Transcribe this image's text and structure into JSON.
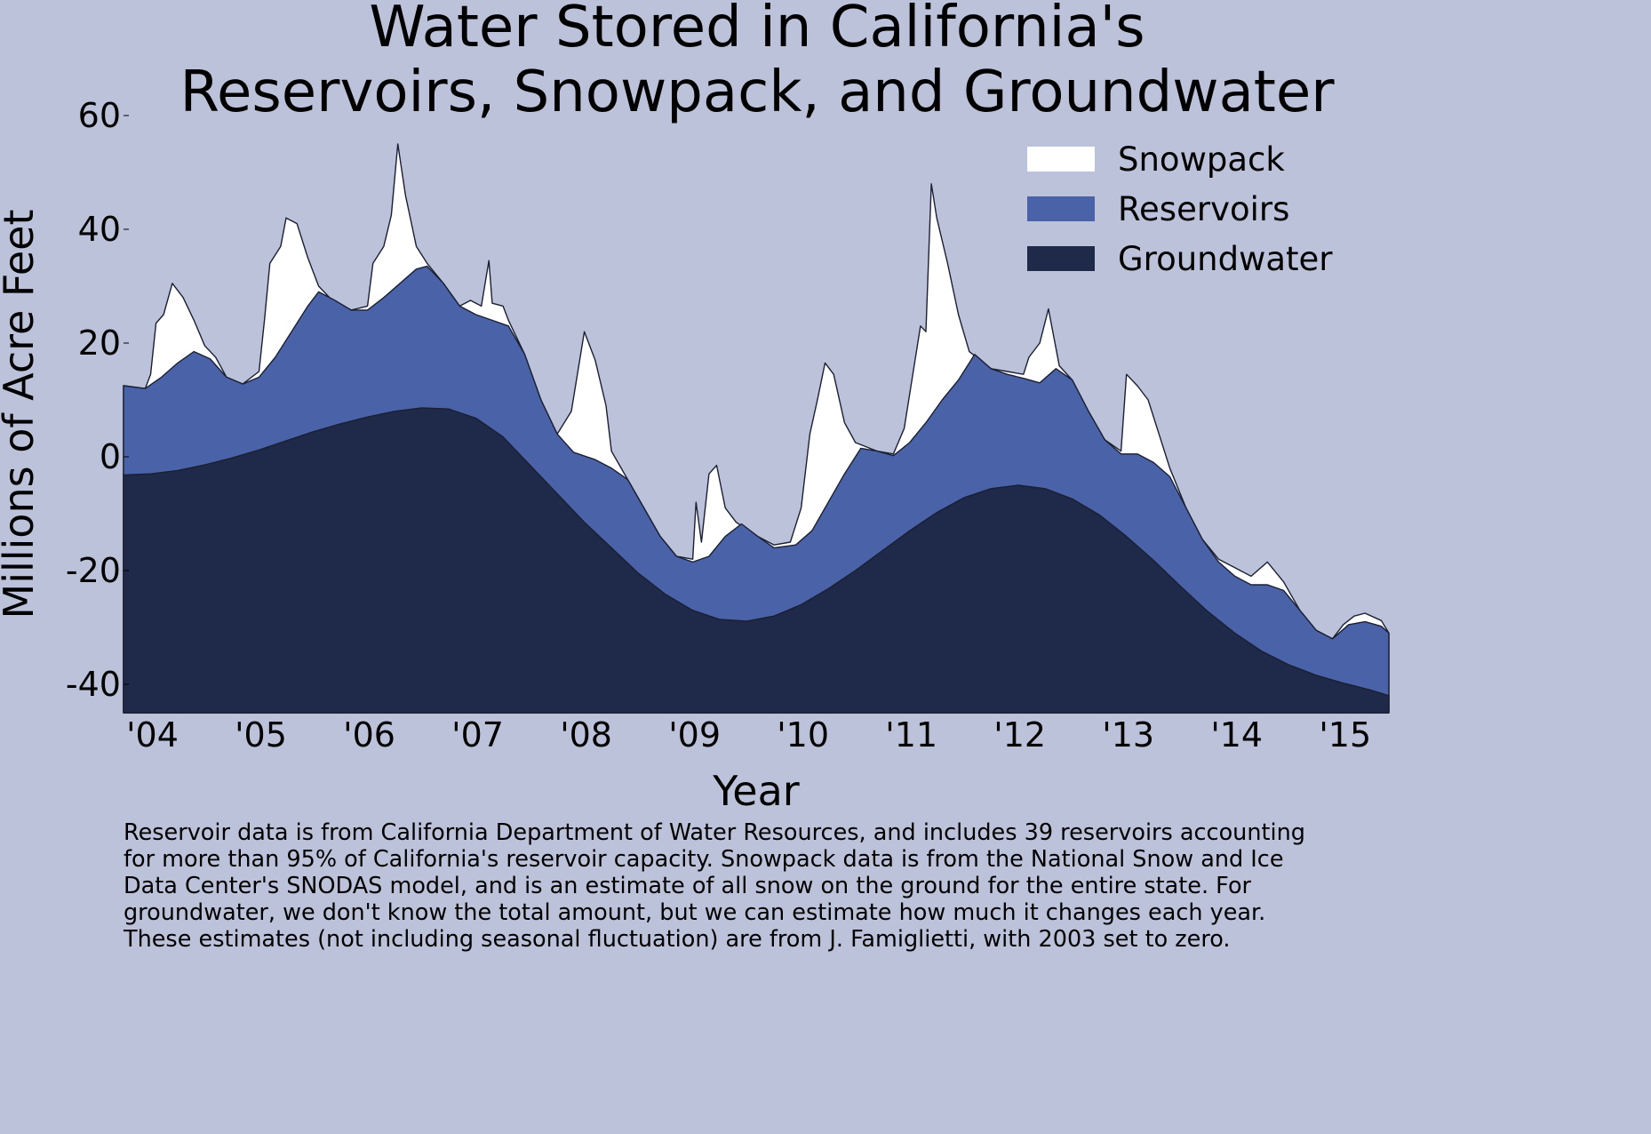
{
  "chart_data": {
    "type": "area",
    "stacked": true,
    "title_lines": [
      "Water Stored in California's",
      "Reservoirs, Snowpack, and Groundwater"
    ],
    "xlabel": "Year",
    "ylabel": "Millions of Acre Feet",
    "xlim": [
      2003.75,
      2015.42
    ],
    "ylim": [
      -45,
      60
    ],
    "x_ticks": [
      2004,
      2005,
      2006,
      2007,
      2008,
      2009,
      2010,
      2011,
      2012,
      2013,
      2014,
      2015
    ],
    "x_tick_labels": [
      "'04",
      "'05",
      "'06",
      "'07",
      "'08",
      "'09",
      "'10",
      "'11",
      "'12",
      "'13",
      "'14",
      "'15"
    ],
    "y_ticks": [
      60,
      40,
      20,
      0,
      -20,
      -40
    ],
    "y_tick_labels": [
      "60",
      "40",
      "20",
      "0",
      "-20",
      "-40"
    ],
    "grid": false,
    "legend_position": "top-right",
    "series": [
      {
        "name": "Groundwater",
        "color": "#1f294a",
        "values": [
          [
            2003.75,
            -3.2
          ],
          [
            2004.0,
            -3.0
          ],
          [
            2004.25,
            -2.4
          ],
          [
            2004.5,
            -1.4
          ],
          [
            2004.75,
            -0.2
          ],
          [
            2005.0,
            1.2
          ],
          [
            2005.25,
            2.8
          ],
          [
            2005.5,
            4.4
          ],
          [
            2005.75,
            5.8
          ],
          [
            2006.0,
            7.0
          ],
          [
            2006.25,
            8.0
          ],
          [
            2006.5,
            8.6
          ],
          [
            2006.75,
            8.4
          ],
          [
            2007.0,
            6.8
          ],
          [
            2007.25,
            3.5
          ],
          [
            2007.5,
            -1.5
          ],
          [
            2007.75,
            -6.5
          ],
          [
            2008.0,
            -11.5
          ],
          [
            2008.25,
            -16.0
          ],
          [
            2008.5,
            -20.5
          ],
          [
            2008.75,
            -24.2
          ],
          [
            2009.0,
            -27.0
          ],
          [
            2009.25,
            -28.6
          ],
          [
            2009.5,
            -28.9
          ],
          [
            2009.75,
            -28.0
          ],
          [
            2010.0,
            -26.0
          ],
          [
            2010.25,
            -23.2
          ],
          [
            2010.5,
            -20.0
          ],
          [
            2010.75,
            -16.5
          ],
          [
            2011.0,
            -13.0
          ],
          [
            2011.25,
            -9.8
          ],
          [
            2011.5,
            -7.2
          ],
          [
            2011.75,
            -5.6
          ],
          [
            2012.0,
            -5.0
          ],
          [
            2012.25,
            -5.6
          ],
          [
            2012.5,
            -7.4
          ],
          [
            2012.75,
            -10.2
          ],
          [
            2013.0,
            -14.0
          ],
          [
            2013.25,
            -18.2
          ],
          [
            2013.5,
            -22.8
          ],
          [
            2013.75,
            -27.2
          ],
          [
            2014.0,
            -31.0
          ],
          [
            2014.25,
            -34.2
          ],
          [
            2014.5,
            -36.6
          ],
          [
            2014.75,
            -38.4
          ],
          [
            2015.0,
            -39.8
          ],
          [
            2015.25,
            -41.0
          ],
          [
            2015.42,
            -42.0
          ]
        ]
      },
      {
        "name": "Reservoirs",
        "color": "#4a63a8",
        "values": [
          [
            2003.75,
            12.5
          ],
          [
            2003.95,
            12.0
          ],
          [
            2004.1,
            14.0
          ],
          [
            2004.25,
            16.5
          ],
          [
            2004.4,
            18.5
          ],
          [
            2004.55,
            17.2
          ],
          [
            2004.7,
            14.0
          ],
          [
            2004.85,
            12.8
          ],
          [
            2005.0,
            14.0
          ],
          [
            2005.15,
            17.5
          ],
          [
            2005.3,
            22.0
          ],
          [
            2005.45,
            26.5
          ],
          [
            2005.55,
            29.0
          ],
          [
            2005.7,
            27.5
          ],
          [
            2005.85,
            25.8
          ],
          [
            2006.0,
            25.8
          ],
          [
            2006.15,
            28.0
          ],
          [
            2006.3,
            30.5
          ],
          [
            2006.45,
            33.0
          ],
          [
            2006.55,
            33.5
          ],
          [
            2006.7,
            30.5
          ],
          [
            2006.85,
            26.5
          ],
          [
            2007.0,
            25.0
          ],
          [
            2007.15,
            24.0
          ],
          [
            2007.3,
            23.0
          ],
          [
            2007.45,
            18.0
          ],
          [
            2007.6,
            10.0
          ],
          [
            2007.75,
            4.0
          ],
          [
            2007.9,
            0.8
          ],
          [
            2008.1,
            -0.5
          ],
          [
            2008.25,
            -2.0
          ],
          [
            2008.4,
            -4.0
          ],
          [
            2008.55,
            -9.0
          ],
          [
            2008.7,
            -14.0
          ],
          [
            2008.85,
            -17.5
          ],
          [
            2009.0,
            -18.5
          ],
          [
            2009.15,
            -17.5
          ],
          [
            2009.3,
            -14.0
          ],
          [
            2009.45,
            -11.8
          ],
          [
            2009.6,
            -14.0
          ],
          [
            2009.75,
            -16.0
          ],
          [
            2009.95,
            -15.5
          ],
          [
            2010.1,
            -13.0
          ],
          [
            2010.25,
            -8.0
          ],
          [
            2010.4,
            -3.0
          ],
          [
            2010.55,
            1.5
          ],
          [
            2010.7,
            1.0
          ],
          [
            2010.85,
            0.2
          ],
          [
            2011.0,
            2.5
          ],
          [
            2011.15,
            6.0
          ],
          [
            2011.3,
            10.0
          ],
          [
            2011.45,
            13.5
          ],
          [
            2011.6,
            18.0
          ],
          [
            2011.75,
            15.5
          ],
          [
            2011.9,
            14.5
          ],
          [
            2012.05,
            13.8
          ],
          [
            2012.2,
            13.0
          ],
          [
            2012.35,
            15.5
          ],
          [
            2012.5,
            13.5
          ],
          [
            2012.65,
            8.0
          ],
          [
            2012.8,
            3.0
          ],
          [
            2012.95,
            0.5
          ],
          [
            2013.1,
            0.5
          ],
          [
            2013.25,
            -1.0
          ],
          [
            2013.4,
            -3.5
          ],
          [
            2013.55,
            -9.0
          ],
          [
            2013.7,
            -14.5
          ],
          [
            2013.85,
            -18.5
          ],
          [
            2014.0,
            -21.0
          ],
          [
            2014.15,
            -22.5
          ],
          [
            2014.3,
            -22.5
          ],
          [
            2014.45,
            -23.5
          ],
          [
            2014.6,
            -27.0
          ],
          [
            2014.75,
            -30.5
          ],
          [
            2014.9,
            -32.0
          ],
          [
            2015.05,
            -29.5
          ],
          [
            2015.2,
            -29.0
          ],
          [
            2015.35,
            -29.8
          ],
          [
            2015.42,
            -31.0
          ]
        ]
      },
      {
        "name": "Snowpack",
        "color": "#ffffff",
        "values": [
          [
            2003.75,
            12.5
          ],
          [
            2003.95,
            12.0
          ],
          [
            2004.0,
            14.5
          ],
          [
            2004.05,
            23.5
          ],
          [
            2004.12,
            25.0
          ],
          [
            2004.2,
            30.5
          ],
          [
            2004.3,
            28.0
          ],
          [
            2004.4,
            24.0
          ],
          [
            2004.5,
            19.5
          ],
          [
            2004.6,
            17.5
          ],
          [
            2004.7,
            14.0
          ],
          [
            2004.85,
            12.8
          ],
          [
            2005.0,
            15.0
          ],
          [
            2005.05,
            24.0
          ],
          [
            2005.1,
            34.0
          ],
          [
            2005.2,
            37.0
          ],
          [
            2005.25,
            42.0
          ],
          [
            2005.35,
            41.0
          ],
          [
            2005.45,
            35.0
          ],
          [
            2005.55,
            30.0
          ],
          [
            2005.7,
            27.0
          ],
          [
            2005.85,
            25.8
          ],
          [
            2006.0,
            26.5
          ],
          [
            2006.05,
            34.0
          ],
          [
            2006.15,
            37.0
          ],
          [
            2006.22,
            42.5
          ],
          [
            2006.28,
            55.0
          ],
          [
            2006.35,
            46.0
          ],
          [
            2006.45,
            37.0
          ],
          [
            2006.55,
            34.0
          ],
          [
            2006.7,
            30.5
          ],
          [
            2006.85,
            26.5
          ],
          [
            2006.95,
            27.5
          ],
          [
            2007.05,
            26.5
          ],
          [
            2007.12,
            34.5
          ],
          [
            2007.15,
            27.0
          ],
          [
            2007.25,
            26.5
          ],
          [
            2007.3,
            24.0
          ],
          [
            2007.45,
            18.0
          ],
          [
            2007.6,
            10.0
          ],
          [
            2007.75,
            4.0
          ],
          [
            2007.88,
            8.0
          ],
          [
            2008.0,
            22.0
          ],
          [
            2008.1,
            17.0
          ],
          [
            2008.2,
            9.0
          ],
          [
            2008.25,
            1.0
          ],
          [
            2008.4,
            -4.0
          ],
          [
            2008.55,
            -9.0
          ],
          [
            2008.7,
            -14.0
          ],
          [
            2008.85,
            -17.5
          ],
          [
            2009.0,
            -18.0
          ],
          [
            2009.03,
            -8.0
          ],
          [
            2009.08,
            -15.0
          ],
          [
            2009.15,
            -3.0
          ],
          [
            2009.22,
            -1.5
          ],
          [
            2009.3,
            -9.0
          ],
          [
            2009.4,
            -11.5
          ],
          [
            2009.55,
            -13.5
          ],
          [
            2009.75,
            -15.5
          ],
          [
            2009.9,
            -15.0
          ],
          [
            2010.0,
            -9.0
          ],
          [
            2010.08,
            4.0
          ],
          [
            2010.15,
            10.0
          ],
          [
            2010.22,
            16.5
          ],
          [
            2010.3,
            14.5
          ],
          [
            2010.4,
            6.0
          ],
          [
            2010.5,
            2.5
          ],
          [
            2010.7,
            1.0
          ],
          [
            2010.85,
            0.5
          ],
          [
            2010.95,
            5.0
          ],
          [
            2011.05,
            17.0
          ],
          [
            2011.1,
            23.0
          ],
          [
            2011.15,
            22.0
          ],
          [
            2011.2,
            48.0
          ],
          [
            2011.25,
            42.0
          ],
          [
            2011.35,
            34.0
          ],
          [
            2011.45,
            25.0
          ],
          [
            2011.55,
            18.5
          ],
          [
            2011.75,
            15.5
          ],
          [
            2011.9,
            15.0
          ],
          [
            2012.05,
            14.5
          ],
          [
            2012.1,
            17.5
          ],
          [
            2012.2,
            20.0
          ],
          [
            2012.28,
            26.0
          ],
          [
            2012.38,
            16.0
          ],
          [
            2012.5,
            13.5
          ],
          [
            2012.65,
            8.0
          ],
          [
            2012.8,
            3.0
          ],
          [
            2012.95,
            1.0
          ],
          [
            2013.0,
            14.5
          ],
          [
            2013.1,
            12.5
          ],
          [
            2013.2,
            10.0
          ],
          [
            2013.3,
            4.0
          ],
          [
            2013.4,
            -2.0
          ],
          [
            2013.55,
            -9.0
          ],
          [
            2013.7,
            -14.5
          ],
          [
            2013.85,
            -18.0
          ],
          [
            2014.0,
            -19.5
          ],
          [
            2014.15,
            -21.0
          ],
          [
            2014.3,
            -18.5
          ],
          [
            2014.45,
            -22.0
          ],
          [
            2014.6,
            -27.0
          ],
          [
            2014.75,
            -30.5
          ],
          [
            2014.9,
            -32.0
          ],
          [
            2015.0,
            -29.5
          ],
          [
            2015.1,
            -28.0
          ],
          [
            2015.2,
            -27.5
          ],
          [
            2015.35,
            -28.8
          ],
          [
            2015.42,
            -31.0
          ]
        ]
      }
    ]
  },
  "footnote_lines": [
    "Reservoir data is from California Department of Water Resources, and includes 39 reservoirs accounting",
    "for more than 95% of California's reservoir capacity. Snowpack data is from the National Snow and Ice",
    "Data Center's SNODAS model, and is an estimate of all snow on the ground for the entire state. For",
    "groundwater, we don't know the total amount, but we can estimate how much it changes each year.",
    "These estimates (not including seasonal fluctuation) are from J. Famiglietti, with 2003 set to zero."
  ]
}
